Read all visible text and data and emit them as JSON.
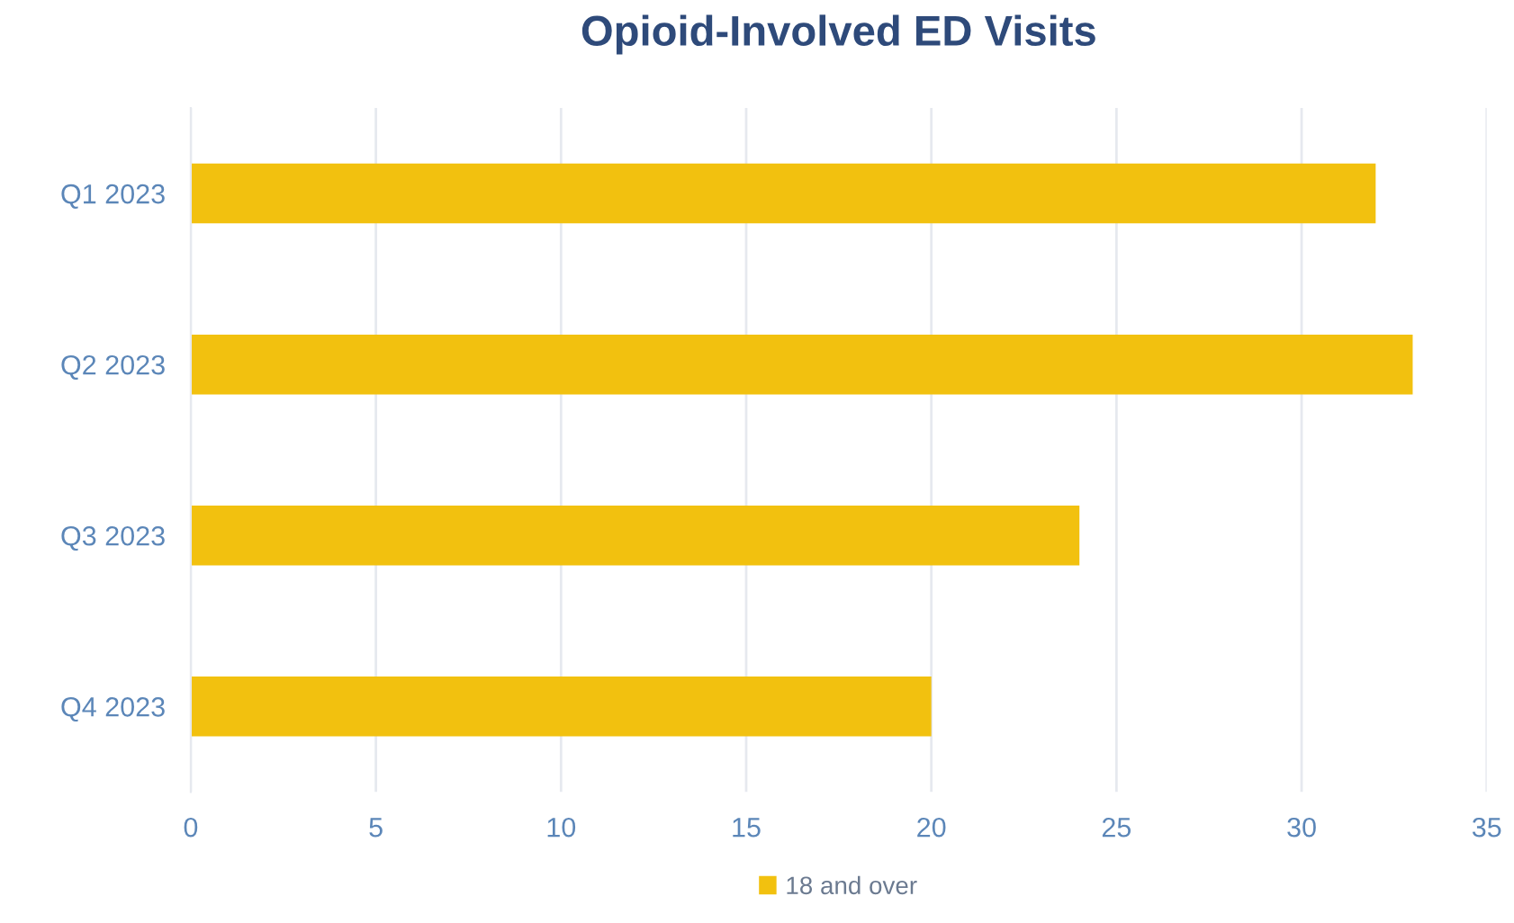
{
  "chart_data": {
    "type": "bar",
    "orientation": "horizontal",
    "title": "Opioid-Involved ED Visits",
    "categories": [
      "Q1 2023",
      "Q2 2023",
      "Q3 2023",
      "Q4 2023"
    ],
    "series": [
      {
        "name": "18 and over",
        "color": "#f2c10f",
        "values": [
          32,
          33,
          24,
          20
        ]
      }
    ],
    "xlim": [
      0,
      35
    ],
    "xticks": [
      0,
      5,
      10,
      15,
      20,
      25,
      30,
      35
    ],
    "grid": "x",
    "legend": "bottom"
  }
}
